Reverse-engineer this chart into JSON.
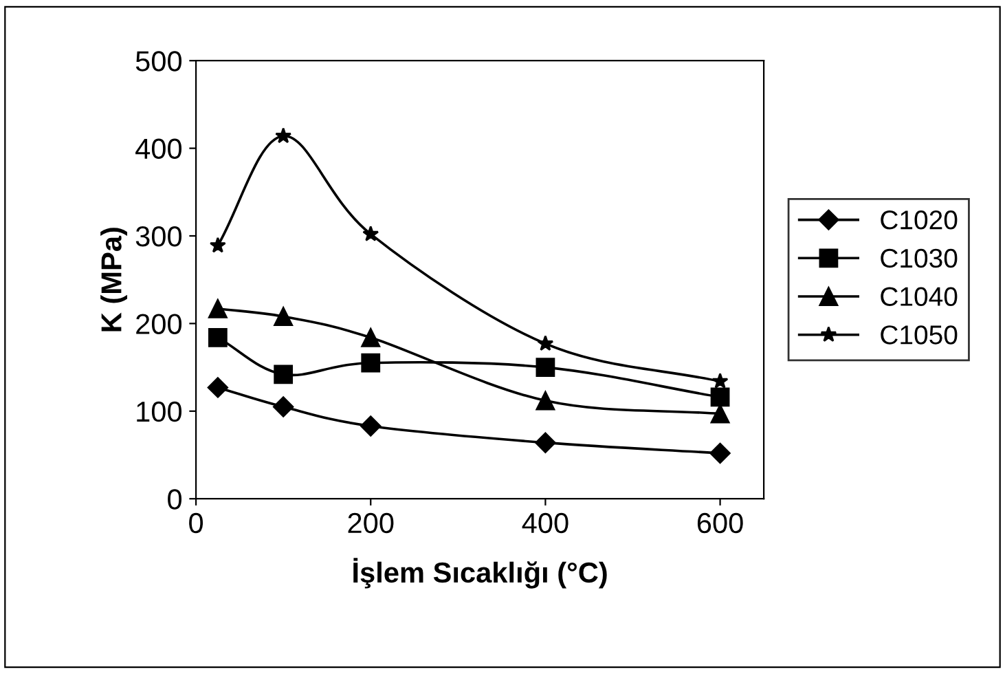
{
  "chart_data": {
    "type": "line",
    "xlabel": "İşlem Sıcaklığı (°C)",
    "ylabel": "K (MPa)",
    "xlim": [
      0,
      650
    ],
    "xticks": [
      0,
      200,
      400,
      600
    ],
    "ylim": [
      0,
      500
    ],
    "yticks": [
      0,
      100,
      200,
      300,
      400,
      500
    ],
    "grid": false,
    "legend": "right",
    "line_style": "solid",
    "series": [
      {
        "name": "C1020",
        "color": "#000000",
        "marker": "diamond",
        "x": [
          25,
          100,
          200,
          400,
          600
        ],
        "values": [
          127,
          105,
          83,
          64,
          52
        ]
      },
      {
        "name": "C1030",
        "color": "#000000",
        "marker": "square",
        "x": [
          25,
          100,
          200,
          400,
          600
        ],
        "values": [
          184,
          142,
          155,
          150,
          116
        ]
      },
      {
        "name": "C1040",
        "color": "#000000",
        "marker": "triangle",
        "x": [
          25,
          100,
          200,
          400,
          600
        ],
        "values": [
          217,
          208,
          184,
          112,
          97
        ]
      },
      {
        "name": "C1050",
        "color": "#000000",
        "marker": "star",
        "x": [
          25,
          100,
          200,
          400,
          600
        ],
        "values": [
          289,
          414,
          302,
          177,
          134
        ]
      }
    ]
  }
}
